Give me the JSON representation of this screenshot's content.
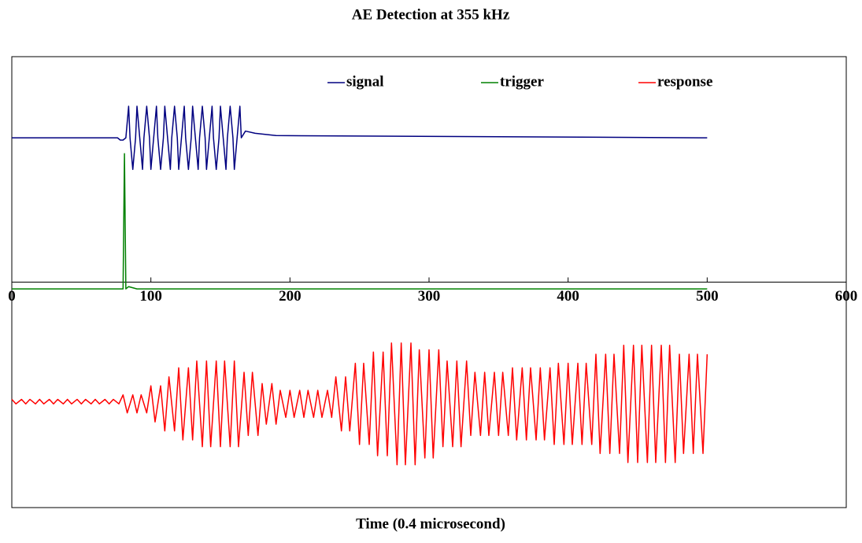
{
  "chart_data": {
    "type": "line",
    "title": "AE Detection at 355 kHz",
    "x_label": "Time (0.4 microsecond)",
    "xlim": [
      0,
      600
    ],
    "xticks": [
      0,
      100,
      200,
      300,
      400,
      500,
      600
    ],
    "ylim": [
      -1,
      1
    ],
    "legend": "top",
    "series": [
      {
        "name": "signal",
        "color": "#000080",
        "x": [
          0,
          76,
          78,
          80,
          82,
          84,
          85,
          87,
          89,
          90,
          92,
          94,
          95,
          97,
          99,
          100,
          102,
          104,
          105,
          107,
          109,
          110,
          112,
          114,
          115,
          117,
          119,
          120,
          122,
          124,
          125,
          127,
          129,
          130,
          132,
          134,
          135,
          137,
          139,
          140,
          142,
          144,
          145,
          147,
          149,
          150,
          152,
          154,
          155,
          157,
          159,
          160,
          162,
          164,
          165,
          168,
          175,
          190,
          500
        ],
        "values": [
          0.64,
          0.64,
          0.63,
          0.63,
          0.64,
          0.78,
          0.64,
          0.5,
          0.64,
          0.78,
          0.64,
          0.5,
          0.64,
          0.78,
          0.64,
          0.5,
          0.64,
          0.78,
          0.64,
          0.5,
          0.64,
          0.78,
          0.64,
          0.5,
          0.64,
          0.78,
          0.64,
          0.5,
          0.64,
          0.78,
          0.64,
          0.5,
          0.64,
          0.78,
          0.64,
          0.5,
          0.64,
          0.78,
          0.64,
          0.5,
          0.64,
          0.78,
          0.64,
          0.5,
          0.64,
          0.78,
          0.64,
          0.5,
          0.64,
          0.78,
          0.64,
          0.5,
          0.64,
          0.78,
          0.64,
          0.67,
          0.66,
          0.65,
          0.64
        ]
      },
      {
        "name": "trigger",
        "color": "#008000",
        "x": [
          0,
          80,
          81,
          82,
          84,
          90,
          500
        ],
        "values": [
          -0.03,
          -0.03,
          0.57,
          -0.03,
          -0.02,
          -0.03,
          -0.03
        ]
      },
      {
        "name": "response",
        "color": "#ff0000",
        "x": [
          0,
          3,
          7,
          10,
          13,
          17,
          20,
          23,
          27,
          30,
          33,
          37,
          40,
          43,
          47,
          50,
          53,
          57,
          60,
          63,
          67,
          70,
          73,
          77,
          80,
          83,
          87,
          90,
          93,
          97,
          100,
          103,
          107,
          110,
          113,
          117,
          120,
          123,
          127,
          130,
          133,
          137,
          140,
          143,
          147,
          150,
          153,
          157,
          160,
          163,
          167,
          170,
          173,
          177,
          180,
          183,
          187,
          190,
          193,
          197,
          200,
          203,
          207,
          210,
          213,
          217,
          220,
          223,
          227,
          230,
          233,
          237,
          240,
          243,
          247,
          250,
          253,
          257,
          260,
          263,
          267,
          270,
          273,
          277,
          280,
          283,
          287,
          290,
          293,
          297,
          300,
          303,
          307,
          310,
          313,
          317,
          320,
          323,
          327,
          330,
          333,
          337,
          340,
          343,
          347,
          350,
          353,
          357,
          360,
          363,
          367,
          370,
          373,
          377,
          380,
          383,
          387,
          390,
          393,
          397,
          400,
          403,
          407,
          410,
          413,
          417,
          420,
          423,
          427,
          430,
          433,
          437,
          440,
          443,
          447,
          450,
          453,
          457,
          460,
          463,
          467,
          470,
          473,
          477,
          480,
          483,
          487,
          490,
          493,
          497,
          500
        ],
        "values": [
          -0.52,
          -0.54,
          -0.52,
          -0.54,
          -0.52,
          -0.54,
          -0.52,
          -0.54,
          -0.52,
          -0.54,
          -0.52,
          -0.54,
          -0.52,
          -0.54,
          -0.52,
          -0.54,
          -0.52,
          -0.54,
          -0.52,
          -0.54,
          -0.52,
          -0.54,
          -0.52,
          -0.54,
          -0.5,
          -0.58,
          -0.5,
          -0.58,
          -0.5,
          -0.58,
          -0.46,
          -0.62,
          -0.46,
          -0.66,
          -0.42,
          -0.66,
          -0.38,
          -0.7,
          -0.38,
          -0.7,
          -0.35,
          -0.73,
          -0.35,
          -0.73,
          -0.35,
          -0.73,
          -0.35,
          -0.73,
          -0.35,
          -0.73,
          -0.4,
          -0.68,
          -0.4,
          -0.68,
          -0.45,
          -0.63,
          -0.45,
          -0.63,
          -0.48,
          -0.6,
          -0.48,
          -0.6,
          -0.48,
          -0.6,
          -0.48,
          -0.6,
          -0.48,
          -0.6,
          -0.48,
          -0.6,
          -0.42,
          -0.66,
          -0.42,
          -0.66,
          -0.36,
          -0.72,
          -0.36,
          -0.72,
          -0.31,
          -0.77,
          -0.31,
          -0.77,
          -0.27,
          -0.81,
          -0.27,
          -0.81,
          -0.27,
          -0.81,
          -0.3,
          -0.78,
          -0.3,
          -0.78,
          -0.3,
          -0.73,
          -0.35,
          -0.73,
          -0.35,
          -0.73,
          -0.35,
          -0.68,
          -0.4,
          -0.68,
          -0.4,
          -0.68,
          -0.4,
          -0.68,
          -0.4,
          -0.68,
          -0.38,
          -0.7,
          -0.38,
          -0.7,
          -0.38,
          -0.7,
          -0.38,
          -0.7,
          -0.38,
          -0.72,
          -0.36,
          -0.72,
          -0.36,
          -0.72,
          -0.36,
          -0.72,
          -0.36,
          -0.72,
          -0.32,
          -0.76,
          -0.32,
          -0.76,
          -0.32,
          -0.76,
          -0.28,
          -0.8,
          -0.28,
          -0.8,
          -0.28,
          -0.8,
          -0.28,
          -0.8,
          -0.28,
          -0.8,
          -0.28,
          -0.8,
          -0.32,
          -0.76,
          -0.32,
          -0.76,
          -0.32,
          -0.76,
          -0.32
        ]
      }
    ]
  }
}
